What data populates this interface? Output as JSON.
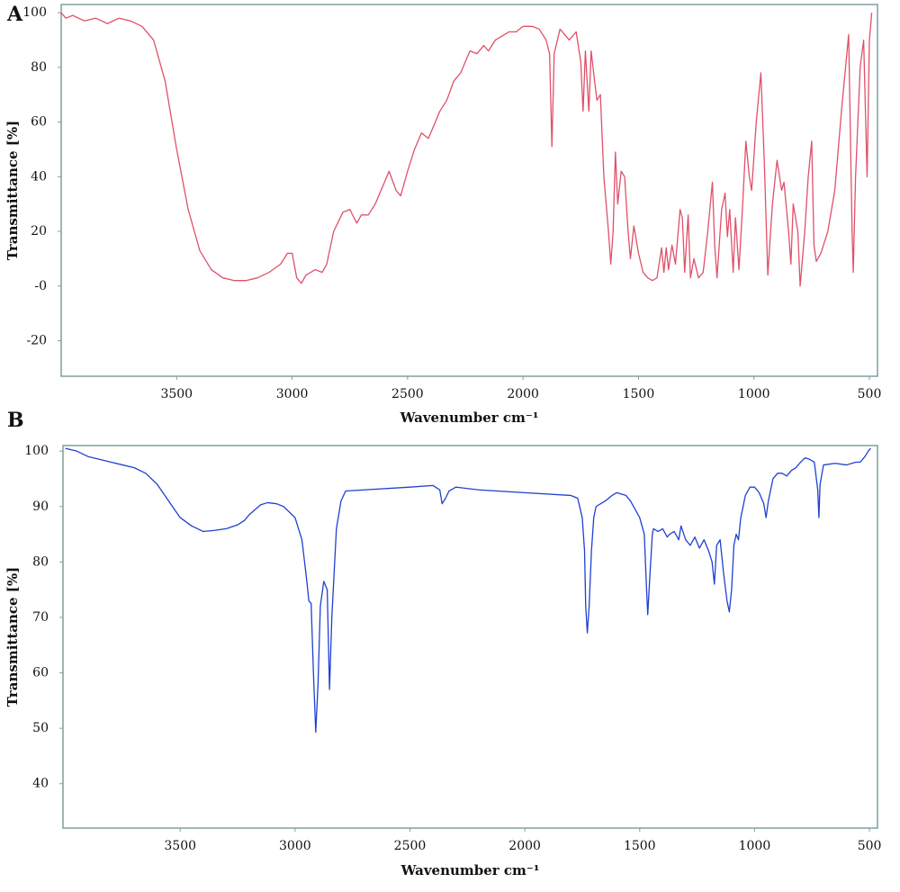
{
  "chart_data": [
    {
      "type": "line",
      "title": "A",
      "x_label": "Wavenumber cm⁻¹",
      "y_label": "Transmittance [%]",
      "xlim": [
        4000,
        465
      ],
      "ylim": [
        -33,
        103
      ],
      "xticks": [
        3500,
        3000,
        2500,
        2000,
        1500,
        1000,
        500
      ],
      "yticks": [
        -20,
        {
          "value": 0,
          "label": "-0"
        },
        20,
        40,
        60,
        80,
        100
      ],
      "x": [
        4000,
        3980,
        3950,
        3900,
        3850,
        3800,
        3750,
        3700,
        3650,
        3600,
        3550,
        3500,
        3450,
        3400,
        3350,
        3300,
        3250,
        3200,
        3150,
        3100,
        3050,
        3020,
        3000,
        2980,
        2960,
        2940,
        2900,
        2870,
        2850,
        2820,
        2780,
        2750,
        2720,
        2700,
        2670,
        2640,
        2600,
        2580,
        2550,
        2530,
        2500,
        2470,
        2440,
        2410,
        2380,
        2360,
        2330,
        2300,
        2270,
        2250,
        2230,
        2200,
        2170,
        2150,
        2120,
        2100,
        2060,
        2030,
        2000,
        1960,
        1930,
        1900,
        1885,
        1875,
        1865,
        1840,
        1800,
        1770,
        1750,
        1740,
        1730,
        1715,
        1705,
        1690,
        1680,
        1665,
        1650,
        1630,
        1620,
        1610,
        1600,
        1590,
        1575,
        1560,
        1545,
        1535,
        1520,
        1500,
        1480,
        1460,
        1440,
        1420,
        1400,
        1390,
        1380,
        1370,
        1355,
        1340,
        1320,
        1310,
        1300,
        1285,
        1275,
        1260,
        1240,
        1220,
        1200,
        1180,
        1170,
        1160,
        1140,
        1125,
        1115,
        1105,
        1090,
        1080,
        1065,
        1050,
        1035,
        1020,
        1010,
        990,
        970,
        955,
        940,
        920,
        900,
        880,
        870,
        850,
        840,
        830,
        810,
        800,
        780,
        765,
        750,
        740,
        730,
        710,
        680,
        650,
        620,
        590,
        575,
        570,
        560,
        540,
        525,
        510,
        500,
        490
      ],
      "series": [
        {
          "color": "#e0506a",
          "values": [
            100,
            98,
            99,
            97,
            98,
            96,
            98,
            97,
            95,
            90,
            75,
            50,
            28,
            13,
            6,
            3,
            2,
            2,
            3,
            5,
            8,
            12,
            12,
            3,
            1,
            4,
            6,
            5,
            8,
            20,
            27,
            28,
            23,
            26,
            26,
            30,
            38,
            42,
            35,
            33,
            42,
            50,
            56,
            54,
            60,
            64,
            68,
            75,
            78,
            82,
            86,
            85,
            88,
            86,
            90,
            91,
            93,
            93,
            95,
            95,
            94,
            90,
            85,
            51,
            85,
            94,
            90,
            93,
            82,
            64,
            86,
            64,
            86,
            75,
            68,
            70,
            40,
            20,
            8,
            20,
            49,
            30,
            42,
            40,
            20,
            10,
            22,
            12,
            5,
            3,
            2,
            3,
            14,
            5,
            14,
            6,
            15,
            8,
            28,
            25,
            5,
            26,
            3,
            10,
            3,
            5,
            20,
            38,
            15,
            3,
            28,
            34,
            18,
            28,
            5,
            25,
            6,
            28,
            53,
            40,
            35,
            60,
            78,
            45,
            4,
            30,
            46,
            35,
            38,
            20,
            8,
            30,
            20,
            0,
            20,
            40,
            53,
            15,
            9,
            12,
            20,
            35,
            65,
            92,
            20,
            5,
            40,
            80,
            90,
            40,
            90,
            100
          ]
        }
      ]
    },
    {
      "type": "line",
      "title": "B",
      "x_label": "Wavenumber cm⁻¹",
      "y_label": "Transmittance [%]",
      "xlim": [
        4010,
        465
      ],
      "ylim": [
        32,
        101
      ],
      "xticks": [
        3500,
        3000,
        2500,
        2000,
        1500,
        1000,
        500
      ],
      "yticks": [
        40,
        50,
        60,
        70,
        80,
        90,
        100
      ],
      "x": [
        4000,
        3950,
        3900,
        3850,
        3800,
        3750,
        3700,
        3650,
        3600,
        3550,
        3500,
        3450,
        3400,
        3350,
        3300,
        3250,
        3220,
        3200,
        3150,
        3120,
        3080,
        3050,
        3000,
        2970,
        2950,
        2940,
        2930,
        2920,
        2910,
        2900,
        2890,
        2875,
        2860,
        2850,
        2840,
        2820,
        2800,
        2780,
        2700,
        2500,
        2400,
        2370,
        2360,
        2345,
        2330,
        2300,
        2200,
        2000,
        1800,
        1770,
        1750,
        1740,
        1735,
        1728,
        1720,
        1710,
        1700,
        1690,
        1650,
        1620,
        1600,
        1560,
        1540,
        1500,
        1480,
        1470,
        1465,
        1455,
        1445,
        1440,
        1420,
        1400,
        1380,
        1370,
        1350,
        1330,
        1320,
        1300,
        1280,
        1260,
        1240,
        1220,
        1200,
        1185,
        1175,
        1165,
        1150,
        1135,
        1120,
        1110,
        1100,
        1090,
        1080,
        1070,
        1060,
        1040,
        1020,
        1000,
        980,
        960,
        950,
        940,
        920,
        900,
        880,
        860,
        840,
        820,
        800,
        780,
        760,
        740,
        725,
        720,
        715,
        700,
        650,
        600,
        560,
        540,
        520,
        505,
        495
      ],
      "series": [
        {
          "color": "#2040d0",
          "values": [
            100.5,
            100,
            99,
            98.5,
            98,
            97.5,
            97,
            96,
            94,
            91,
            88,
            86.5,
            85.5,
            85.7,
            86,
            86.7,
            87.5,
            88.5,
            90.3,
            90.7,
            90.5,
            90,
            88,
            84,
            77,
            73,
            72.5,
            60,
            49.3,
            58,
            72,
            76.5,
            75,
            57,
            70,
            86,
            91,
            92.8,
            93,
            93.5,
            93.8,
            93,
            90.5,
            91.5,
            92.8,
            93.5,
            93,
            92.5,
            92,
            91.5,
            88,
            82,
            72,
            67.2,
            72,
            82,
            88,
            90,
            91,
            92,
            92.5,
            92,
            91,
            88,
            85,
            75,
            70.5,
            78,
            85,
            86,
            85.5,
            86,
            84.5,
            85,
            85.5,
            84,
            86.5,
            84,
            83,
            84.5,
            82.5,
            84,
            82,
            80,
            76,
            83,
            84,
            78,
            73,
            71,
            75,
            83,
            85,
            84,
            88,
            92,
            93.5,
            93.5,
            92.5,
            90.5,
            88,
            91,
            95,
            96,
            96,
            95.5,
            96.5,
            97,
            98,
            98.8,
            98.5,
            98,
            93,
            88,
            94,
            97.5,
            97.8,
            97.5,
            98,
            98,
            99,
            100,
            100.5
          ]
        }
      ]
    }
  ]
}
